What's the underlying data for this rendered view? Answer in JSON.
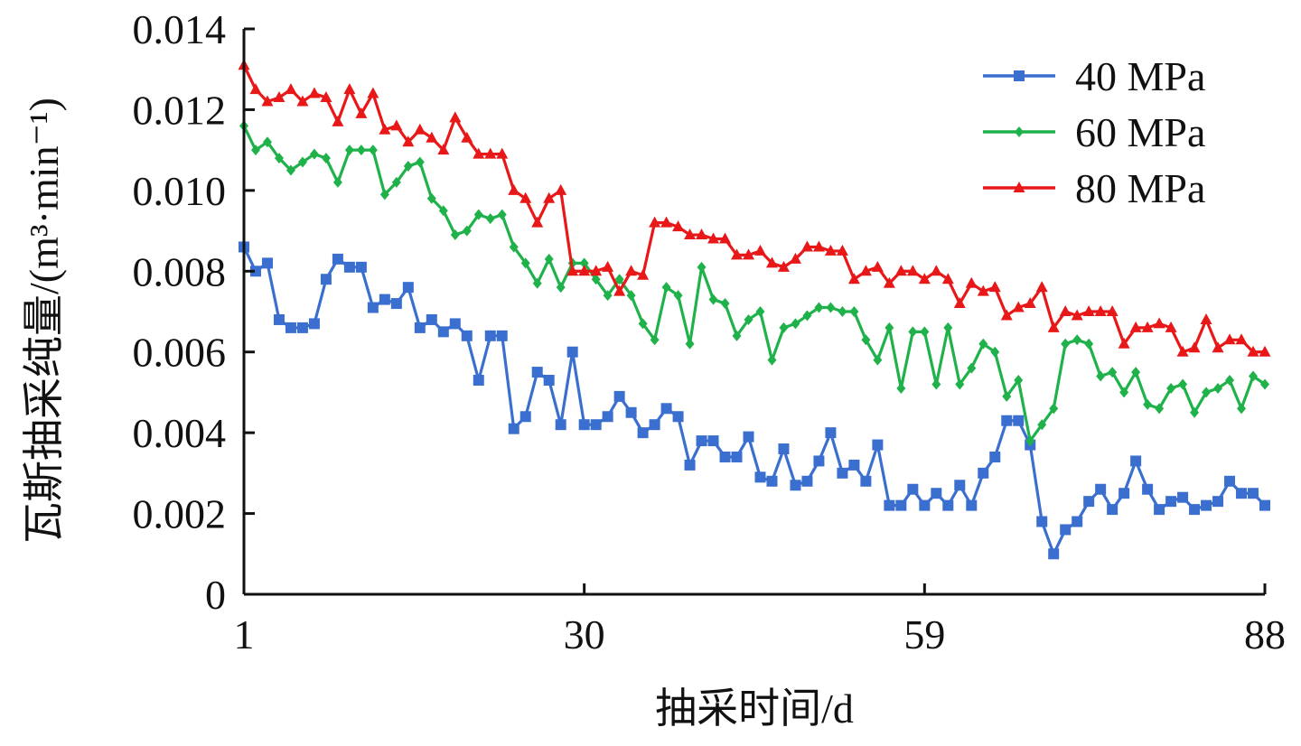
{
  "chart_data": {
    "type": "line",
    "xlabel": "抽采时间/d",
    "ylabel": "瓦斯抽采纯量/(m³·min⁻¹)",
    "xlim": [
      1,
      88
    ],
    "ylim": [
      0,
      0.014
    ],
    "xticks": [
      1,
      30,
      59,
      88
    ],
    "xtick_labels": [
      "1",
      "30",
      "59",
      "88"
    ],
    "yticks": [
      0,
      0.002,
      0.004,
      0.006,
      0.008,
      0.01,
      0.012,
      0.014
    ],
    "ytick_labels": [
      "0",
      "0.002",
      "0.004",
      "0.006",
      "0.008",
      "0.010",
      "0.012",
      "0.014"
    ],
    "grid": false,
    "legend_position": "top-right",
    "series": [
      {
        "name": "40 MPa",
        "color": "#3a6fd0",
        "marker": "square",
        "x": [
          1,
          2,
          3,
          4,
          5,
          6,
          7,
          8,
          9,
          10,
          11,
          12,
          13,
          14,
          15,
          16,
          17,
          18,
          19,
          20,
          21,
          22,
          23,
          24,
          25,
          26,
          27,
          28,
          29,
          30,
          31,
          32,
          33,
          34,
          35,
          36,
          37,
          38,
          39,
          40,
          41,
          42,
          43,
          44,
          45,
          46,
          47,
          48,
          49,
          50,
          51,
          52,
          53,
          54,
          55,
          56,
          57,
          58,
          59,
          60,
          61,
          62,
          63,
          64,
          65,
          66,
          67,
          68,
          69,
          70,
          71,
          72,
          73,
          74,
          75,
          76,
          77,
          78,
          79,
          80,
          81,
          82,
          83,
          84,
          85,
          86,
          87,
          88
        ],
        "values": [
          0.0086,
          0.008,
          0.0082,
          0.0068,
          0.0066,
          0.0066,
          0.0067,
          0.0078,
          0.0083,
          0.0081,
          0.0081,
          0.0071,
          0.0073,
          0.0072,
          0.0076,
          0.0066,
          0.0068,
          0.0065,
          0.0067,
          0.0064,
          0.0053,
          0.0064,
          0.0064,
          0.0041,
          0.0044,
          0.0055,
          0.0053,
          0.0042,
          0.006,
          0.0042,
          0.0042,
          0.0044,
          0.0049,
          0.0045,
          0.004,
          0.0042,
          0.0046,
          0.0044,
          0.0032,
          0.0038,
          0.0038,
          0.0034,
          0.0034,
          0.0039,
          0.0029,
          0.0028,
          0.0036,
          0.0027,
          0.0028,
          0.0033,
          0.004,
          0.003,
          0.0032,
          0.0028,
          0.0037,
          0.0022,
          0.0022,
          0.0026,
          0.0022,
          0.0025,
          0.0022,
          0.0027,
          0.0022,
          0.003,
          0.0034,
          0.0043,
          0.0043,
          0.0037,
          0.0018,
          0.001,
          0.0016,
          0.0018,
          0.0023,
          0.0026,
          0.0021,
          0.0025,
          0.0033,
          0.0026,
          0.0021,
          0.0023,
          0.0024,
          0.0021,
          0.0022,
          0.0023,
          0.0028,
          0.0025,
          0.0025,
          0.0022
        ]
      },
      {
        "name": "60 MPa",
        "color": "#1fb24a",
        "marker": "diamond",
        "x": [
          1,
          2,
          3,
          4,
          5,
          6,
          7,
          8,
          9,
          10,
          11,
          12,
          13,
          14,
          15,
          16,
          17,
          18,
          19,
          20,
          21,
          22,
          23,
          24,
          25,
          26,
          27,
          28,
          29,
          30,
          31,
          32,
          33,
          34,
          35,
          36,
          37,
          38,
          39,
          40,
          41,
          42,
          43,
          44,
          45,
          46,
          47,
          48,
          49,
          50,
          51,
          52,
          53,
          54,
          55,
          56,
          57,
          58,
          59,
          60,
          61,
          62,
          63,
          64,
          65,
          66,
          67,
          68,
          69,
          70,
          71,
          72,
          73,
          74,
          75,
          76,
          77,
          78,
          79,
          80,
          81,
          82,
          83,
          84,
          85,
          86,
          87,
          88
        ],
        "values": [
          0.0116,
          0.011,
          0.0112,
          0.0108,
          0.0105,
          0.0107,
          0.0109,
          0.0108,
          0.0102,
          0.011,
          0.011,
          0.011,
          0.0099,
          0.0102,
          0.0106,
          0.0107,
          0.0098,
          0.0095,
          0.0089,
          0.009,
          0.0094,
          0.0093,
          0.0094,
          0.0086,
          0.0082,
          0.0077,
          0.0083,
          0.0076,
          0.0082,
          0.0082,
          0.0078,
          0.0074,
          0.0078,
          0.0074,
          0.0067,
          0.0063,
          0.0076,
          0.0074,
          0.0062,
          0.0081,
          0.0073,
          0.0072,
          0.0064,
          0.0068,
          0.007,
          0.0058,
          0.0066,
          0.0067,
          0.0069,
          0.0071,
          0.0071,
          0.007,
          0.007,
          0.0063,
          0.0058,
          0.0066,
          0.0051,
          0.0065,
          0.0065,
          0.0052,
          0.0066,
          0.0052,
          0.0056,
          0.0062,
          0.006,
          0.0049,
          0.0053,
          0.0038,
          0.0042,
          0.0046,
          0.0062,
          0.0063,
          0.0062,
          0.0054,
          0.0055,
          0.005,
          0.0055,
          0.0047,
          0.0046,
          0.0051,
          0.0052,
          0.0045,
          0.005,
          0.0051,
          0.0053,
          0.0046,
          0.0054,
          0.0052
        ]
      },
      {
        "name": "80 MPa",
        "color": "#e81818",
        "marker": "triangle",
        "x": [
          1,
          2,
          3,
          4,
          5,
          6,
          7,
          8,
          9,
          10,
          11,
          12,
          13,
          14,
          15,
          16,
          17,
          18,
          19,
          20,
          21,
          22,
          23,
          24,
          25,
          26,
          27,
          28,
          29,
          30,
          31,
          32,
          33,
          34,
          35,
          36,
          37,
          38,
          39,
          40,
          41,
          42,
          43,
          44,
          45,
          46,
          47,
          48,
          49,
          50,
          51,
          52,
          53,
          54,
          55,
          56,
          57,
          58,
          59,
          60,
          61,
          62,
          63,
          64,
          65,
          66,
          67,
          68,
          69,
          70,
          71,
          72,
          73,
          74,
          75,
          76,
          77,
          78,
          79,
          80,
          81,
          82,
          83,
          84,
          85,
          86,
          87,
          88
        ],
        "values": [
          0.0131,
          0.0125,
          0.0122,
          0.0123,
          0.0125,
          0.0122,
          0.0124,
          0.0123,
          0.0117,
          0.0125,
          0.0119,
          0.0124,
          0.0115,
          0.0116,
          0.0112,
          0.0115,
          0.0113,
          0.011,
          0.0118,
          0.0113,
          0.0109,
          0.0109,
          0.0109,
          0.01,
          0.0098,
          0.0092,
          0.0098,
          0.01,
          0.008,
          0.008,
          0.008,
          0.0081,
          0.0075,
          0.008,
          0.0079,
          0.0092,
          0.0092,
          0.0091,
          0.0089,
          0.0089,
          0.0088,
          0.0088,
          0.0084,
          0.0084,
          0.0085,
          0.0082,
          0.0081,
          0.0083,
          0.0086,
          0.0086,
          0.0085,
          0.0085,
          0.0078,
          0.008,
          0.0081,
          0.0077,
          0.008,
          0.008,
          0.0078,
          0.008,
          0.0078,
          0.0072,
          0.0077,
          0.0075,
          0.0076,
          0.0069,
          0.0071,
          0.0072,
          0.0076,
          0.0066,
          0.007,
          0.0069,
          0.007,
          0.007,
          0.007,
          0.0062,
          0.0066,
          0.0066,
          0.0067,
          0.0066,
          0.006,
          0.0061,
          0.0068,
          0.0061,
          0.0063,
          0.0063,
          0.006,
          0.006
        ]
      }
    ]
  }
}
